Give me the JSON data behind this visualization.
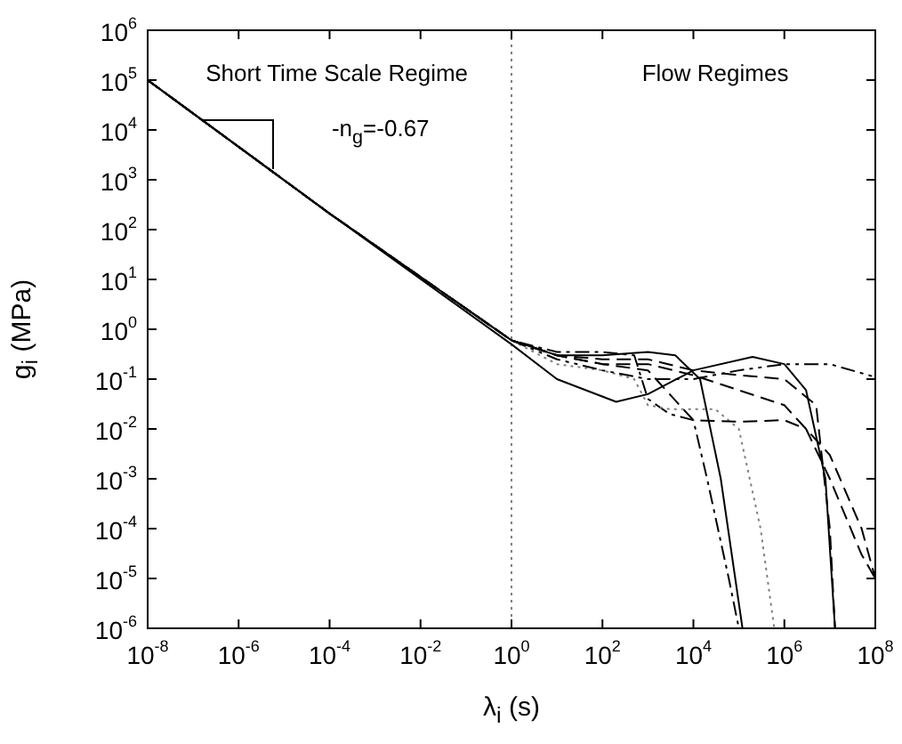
{
  "chart_data": {
    "type": "line",
    "xlabel": "λ$_{i}$ (s)",
    "ylabel": "g$_{i}$ (MPa)",
    "log": "xy",
    "legend": false,
    "grid": false,
    "marker": "none",
    "xlim": [
      1e-08,
      100000000.0
    ],
    "ylim": [
      1e-06,
      1000000.0
    ],
    "xticks": [
      {
        "value": 1e-08,
        "label": "10$^{-8}$"
      },
      {
        "value": 1e-06,
        "label": "10$^{-6}$"
      },
      {
        "value": 0.0001,
        "label": "10$^{-4}$"
      },
      {
        "value": 0.01,
        "label": "10$^{-2}$"
      },
      {
        "value": 1,
        "label": "10$^{0}$"
      },
      {
        "value": 100.0,
        "label": "10$^{2}$"
      },
      {
        "value": 10000.0,
        "label": "10$^{4}$"
      },
      {
        "value": 1000000.0,
        "label": "10$^{6}$"
      },
      {
        "value": 100000000.0,
        "label": "10$^{8}$"
      }
    ],
    "yticks": [
      {
        "value": 1e-06,
        "label": "10$^{-6}$"
      },
      {
        "value": 1e-05,
        "label": "10$^{-5}$"
      },
      {
        "value": 0.0001,
        "label": "10$^{-4}$"
      },
      {
        "value": 0.001,
        "label": "10$^{-3}$"
      },
      {
        "value": 0.01,
        "label": "10$^{-2}$"
      },
      {
        "value": 0.1,
        "label": "10$^{-1}$"
      },
      {
        "value": 1,
        "label": "10$^{0}$"
      },
      {
        "value": 10,
        "label": "10$^{1}$"
      },
      {
        "value": 100,
        "label": "10$^{2}$"
      },
      {
        "value": 1000,
        "label": "10$^{3}$"
      },
      {
        "value": 10000.0,
        "label": "10$^{4}$"
      },
      {
        "value": 100000.0,
        "label": "10$^{5}$"
      },
      {
        "value": 1000000.0,
        "label": "10$^{6}$"
      }
    ],
    "ref_lines": [
      {
        "axis": "x",
        "value": 1,
        "line_style": "dotted",
        "color": "#808080"
      }
    ],
    "annotations": [
      "Short Time Scale Regime",
      "Flow Regimes",
      "-n$_{g}$=-0.67"
    ],
    "series": [
      {
        "color": "#000000",
        "line_style": "solid",
        "x": [
          1e-08,
          0.0001,
          1,
          10,
          200,
          1000,
          10000.0,
          200000.0,
          1000000.0,
          3000000.0,
          8000000.0,
          13000000.0
        ],
        "values": [
          100000,
          210,
          0.5,
          0.1,
          0.035,
          0.05,
          0.15,
          0.28,
          0.2,
          0.06,
          0.001,
          1e-06
        ]
      },
      {
        "color": "#000000",
        "line_style": "solid",
        "x": [
          1e-08,
          0.0001,
          1,
          10,
          100,
          1000,
          4000,
          14000.0,
          40000.0,
          120000.0
        ],
        "values": [
          100000,
          210,
          0.6,
          0.3,
          0.3,
          0.35,
          0.3,
          0.1,
          0.001,
          1e-06
        ]
      },
      {
        "color": "#000000",
        "line_style": "dashdotdot",
        "x": [
          1e-08,
          0.0001,
          1,
          10,
          100,
          1000,
          10000.0,
          100000.0,
          1000000.0,
          10000000.0,
          100000000.0
        ],
        "values": [
          100000,
          210,
          0.6,
          0.25,
          0.15,
          0.1,
          0.1,
          0.15,
          0.2,
          0.2,
          0.11
        ]
      },
      {
        "color": "#000000",
        "line_style": "dashed",
        "x": [
          1e-08,
          0.0001,
          1,
          10,
          100,
          1000,
          3000,
          10000.0,
          100000.0,
          1000000.0,
          3000000.0,
          10000000.0,
          50000000.0,
          100000000.0
        ],
        "values": [
          100000,
          210,
          0.6,
          0.3,
          0.2,
          0.15,
          0.05,
          0.015,
          0.014,
          0.015,
          0.01,
          0.001,
          3e-05,
          1e-05
        ]
      },
      {
        "color": "#808080",
        "line_style": "dotted",
        "x": [
          1e-08,
          0.0001,
          1,
          10,
          100,
          500,
          1000,
          3000,
          30000.0,
          100000.0,
          300000.0,
          600000.0
        ],
        "values": [
          100000,
          210,
          0.6,
          0.2,
          0.15,
          0.1,
          0.03,
          0.025,
          0.025,
          0.01,
          0.0001,
          1e-06
        ]
      },
      {
        "color": "#000000",
        "line_style": "dashdot",
        "x": [
          1e-08,
          0.0001,
          1,
          10,
          100,
          500,
          1000,
          3000,
          10000.0,
          20000.0,
          60000.0,
          100000.0
        ],
        "values": [
          100000,
          210,
          0.6,
          0.35,
          0.35,
          0.3,
          0.04,
          0.02,
          0.015,
          0.001,
          1e-05,
          1e-06
        ]
      },
      {
        "color": "#000000",
        "line_style": "dashed",
        "x": [
          1e-08,
          0.0001,
          1,
          10,
          100,
          1000,
          10000.0,
          100000.0,
          1000000.0,
          5000000.0,
          10000000.0,
          13000000.0
        ],
        "values": [
          100000,
          210,
          0.6,
          0.3,
          0.25,
          0.25,
          0.15,
          0.12,
          0.1,
          0.03,
          0.0001,
          1e-06
        ]
      },
      {
        "color": "#000000",
        "line_style": "dashed",
        "x": [
          1e-08,
          0.0001,
          1,
          10,
          100,
          1000,
          10000.0,
          100000.0,
          1000000.0,
          10000000.0,
          50000000.0,
          100000000.0
        ],
        "values": [
          100000,
          210,
          0.6,
          0.3,
          0.2,
          0.2,
          0.12,
          0.06,
          0.03,
          0.003,
          0.0001,
          1e-05
        ]
      }
    ]
  }
}
